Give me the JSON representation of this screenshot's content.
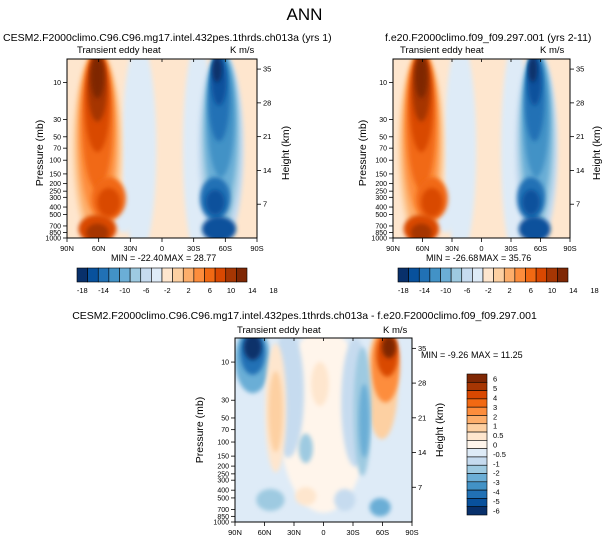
{
  "page_title": "ANN",
  "color_scale": {
    "abs_colors": [
      "#08306b",
      "#08519c",
      "#2171b5",
      "#4292c6",
      "#6baed6",
      "#9ecae1",
      "#c6dbef",
      "#deebf7",
      "#fee6ce",
      "#fdd0a2",
      "#fdae6b",
      "#fd8d3c",
      "#f16913",
      "#d94801",
      "#a63603",
      "#7f2704"
    ],
    "diff_colors": [
      "#08306b",
      "#08519c",
      "#2171b5",
      "#4292c6",
      "#6baed6",
      "#9ecae1",
      "#c6dbef",
      "#deebf7",
      "#fff5eb",
      "#fee6ce",
      "#fdd0a2",
      "#fdae6b",
      "#fd8d3c",
      "#f16913",
      "#d94801",
      "#a63603",
      "#7f2704"
    ]
  },
  "chart_data": [
    {
      "id": "panel_a",
      "type": "heatmap",
      "title": "CESM2.F2000climo.C96.C96.mg17.intel.432pes.1thrds.ch013a (yrs 1)",
      "subtitle": "Transient eddy heat",
      "units": "K m/s",
      "xlabel": "",
      "ylabel": "Pressure (mb)",
      "ylabel_right": "Height (km)",
      "x_ticks": [
        "90N",
        "60N",
        "30N",
        "0",
        "30S",
        "60S",
        "90S"
      ],
      "y_ticks": [
        "10",
        "30",
        "50",
        "70",
        "100",
        "150",
        "200",
        "250",
        "300",
        "400",
        "500",
        "700",
        "850",
        "1000"
      ],
      "height_ticks": [
        "35",
        "28",
        "21",
        "14",
        "7"
      ],
      "stats": {
        "min_label": "MIN = -22.40",
        "max_label": "MAX = 28.77"
      },
      "colorbar_labels": [
        "-18",
        "-14",
        "-10",
        "-6",
        "-2",
        "2",
        "6",
        "10",
        "14",
        "18"
      ]
    },
    {
      "id": "panel_b",
      "type": "heatmap",
      "title": "f.e20.F2000climo.f09_f09.297.001 (yrs 2-11)",
      "subtitle": "Transient eddy heat",
      "units": "K m/s",
      "xlabel": "",
      "ylabel": "Pressure (mb)",
      "ylabel_right": "Height (km)",
      "x_ticks": [
        "90N",
        "60N",
        "30N",
        "0",
        "30S",
        "60S",
        "90S"
      ],
      "y_ticks": [
        "10",
        "30",
        "50",
        "70",
        "100",
        "150",
        "200",
        "250",
        "300",
        "400",
        "500",
        "700",
        "850",
        "1000"
      ],
      "height_ticks": [
        "35",
        "28",
        "21",
        "14",
        "7"
      ],
      "stats": {
        "min_label": "MIN = -26.68",
        "max_label": "MAX = 35.76"
      },
      "colorbar_labels": [
        "-18",
        "-14",
        "-10",
        "-6",
        "-2",
        "2",
        "6",
        "10",
        "14",
        "18"
      ]
    },
    {
      "id": "panel_c",
      "type": "heatmap",
      "title": "CESM2.F2000climo.C96.C96.mg17.intel.432pes.1thrds.ch013a - f.e20.F2000climo.f09_f09.297.001",
      "subtitle": "Transient eddy heat",
      "units": "K m/s",
      "xlabel": "",
      "ylabel": "Pressure (mb)",
      "ylabel_right": "Height (km)",
      "x_ticks": [
        "90N",
        "60N",
        "30N",
        "0",
        "30S",
        "60S",
        "90S"
      ],
      "y_ticks": [
        "10",
        "30",
        "50",
        "70",
        "100",
        "150",
        "200",
        "250",
        "300",
        "400",
        "500",
        "700",
        "850",
        "1000"
      ],
      "height_ticks": [
        "35",
        "28",
        "21",
        "14",
        "7"
      ],
      "stats": {
        "min_label": "MIN = -9.26",
        "max_label": "MAX = 11.25"
      },
      "colorbar_labels": [
        "6",
        "5",
        "4",
        "3",
        "2",
        "1",
        "0.5",
        "0",
        "-0.5",
        "-1",
        "-2",
        "-3",
        "-4",
        "-5",
        "-6"
      ]
    }
  ]
}
